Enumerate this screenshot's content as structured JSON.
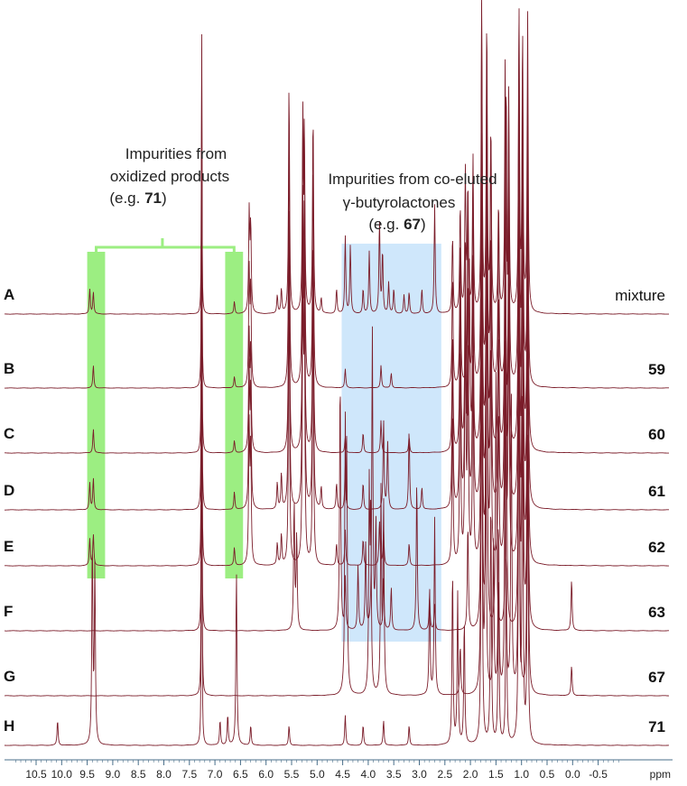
{
  "chart_data": {
    "type": "line",
    "title": "",
    "xlabel": "ppm",
    "x_axis": {
      "range": [
        10.9,
        -0.95
      ],
      "reversed": true,
      "ticks": [
        10.5,
        10.0,
        9.5,
        9.0,
        8.5,
        8.0,
        7.5,
        7.0,
        6.5,
        6.0,
        5.5,
        5.0,
        4.5,
        4.0,
        3.5,
        3.0,
        2.5,
        2.0,
        1.5,
        1.0,
        0.5,
        0.0,
        -0.5
      ],
      "tick_labels": [
        "10.5",
        "10.0",
        "9.5",
        "9.0",
        "8.5",
        "8.0",
        "7.5",
        "7.0",
        "6.5",
        "6.0",
        "5.5",
        "5.0",
        "4.5",
        "4.0",
        "3.5",
        "3.0",
        "2.5",
        "2.0",
        "1.5",
        "1.0",
        "0.5",
        "0.0",
        "-0.5"
      ],
      "unit_label": "ppm"
    },
    "grid": false,
    "line_color": "#7b1d2a",
    "series": [
      {
        "row": "A",
        "label": "mixture",
        "peaks": [
          [
            9.45,
            0.08
          ],
          [
            9.38,
            0.07
          ],
          [
            7.26,
            1.0
          ],
          [
            6.62,
            0.04
          ],
          [
            6.33,
            0.32
          ],
          [
            6.3,
            0.28
          ],
          [
            5.78,
            0.06
          ],
          [
            5.7,
            0.08
          ],
          [
            5.55,
            0.75
          ],
          [
            5.28,
            0.6
          ],
          [
            5.25,
            0.55
          ],
          [
            5.08,
            0.65
          ],
          [
            4.92,
            0.05
          ],
          [
            4.62,
            0.08
          ],
          [
            4.45,
            0.25
          ],
          [
            4.35,
            0.22
          ],
          [
            4.1,
            0.08
          ],
          [
            3.98,
            0.2
          ],
          [
            3.78,
            0.3
          ],
          [
            3.72,
            0.2
          ],
          [
            3.6,
            0.1
          ],
          [
            3.5,
            0.08
          ],
          [
            3.3,
            0.06
          ],
          [
            3.2,
            0.07
          ],
          [
            2.95,
            0.08
          ],
          [
            2.7,
            0.35
          ],
          [
            2.35,
            0.25
          ],
          [
            2.2,
            0.35
          ],
          [
            2.1,
            0.45
          ],
          [
            2.05,
            0.4
          ],
          [
            1.95,
            0.5
          ],
          [
            1.78,
            1.0
          ],
          [
            1.68,
            0.95
          ],
          [
            1.6,
            0.6
          ],
          [
            1.45,
            0.35
          ],
          [
            1.32,
            0.8
          ],
          [
            1.25,
            0.7
          ],
          [
            1.05,
            0.95
          ],
          [
            0.98,
            0.9
          ],
          [
            0.88,
            0.95
          ]
        ]
      },
      {
        "row": "B",
        "label": "59",
        "peaks": [
          [
            9.38,
            0.06
          ],
          [
            7.26,
            1.0
          ],
          [
            6.62,
            0.03
          ],
          [
            6.33,
            0.3
          ],
          [
            6.3,
            0.26
          ],
          [
            5.55,
            0.7
          ],
          [
            5.28,
            0.65
          ],
          [
            5.25,
            0.6
          ],
          [
            5.08,
            0.62
          ],
          [
            4.45,
            0.05
          ],
          [
            3.75,
            0.06
          ],
          [
            3.55,
            0.04
          ],
          [
            2.35,
            0.3
          ],
          [
            2.2,
            0.4
          ],
          [
            2.05,
            0.5
          ],
          [
            1.95,
            0.55
          ],
          [
            1.78,
            1.0
          ],
          [
            1.68,
            0.9
          ],
          [
            1.6,
            0.7
          ],
          [
            1.45,
            0.5
          ],
          [
            1.3,
            0.8
          ],
          [
            1.25,
            0.7
          ],
          [
            1.05,
            1.0
          ],
          [
            0.98,
            0.9
          ],
          [
            0.88,
            0.7
          ]
        ]
      },
      {
        "row": "C",
        "label": "60",
        "peaks": [
          [
            9.38,
            0.06
          ],
          [
            7.26,
            1.0
          ],
          [
            6.62,
            0.03
          ],
          [
            6.33,
            0.28
          ],
          [
            6.3,
            0.25
          ],
          [
            5.55,
            0.62
          ],
          [
            5.28,
            0.58
          ],
          [
            5.25,
            0.55
          ],
          [
            5.08,
            0.55
          ],
          [
            4.45,
            0.04
          ],
          [
            4.1,
            0.05
          ],
          [
            3.75,
            0.08
          ],
          [
            3.2,
            0.04
          ],
          [
            2.35,
            0.3
          ],
          [
            2.2,
            0.45
          ],
          [
            2.1,
            0.5
          ],
          [
            2.02,
            0.45
          ],
          [
            1.95,
            0.4
          ],
          [
            1.78,
            1.0
          ],
          [
            1.68,
            0.95
          ],
          [
            1.6,
            0.55
          ],
          [
            1.45,
            0.4
          ],
          [
            1.32,
            0.8
          ],
          [
            1.25,
            0.7
          ],
          [
            1.05,
            1.0
          ],
          [
            0.98,
            0.9
          ],
          [
            0.88,
            0.85
          ]
        ]
      },
      {
        "row": "D",
        "label": "61",
        "peaks": [
          [
            9.45,
            0.06
          ],
          [
            9.38,
            0.07
          ],
          [
            7.26,
            1.0
          ],
          [
            6.62,
            0.04
          ],
          [
            6.33,
            0.3
          ],
          [
            6.3,
            0.26
          ],
          [
            5.78,
            0.06
          ],
          [
            5.7,
            0.08
          ],
          [
            5.55,
            0.7
          ],
          [
            5.28,
            0.6
          ],
          [
            5.25,
            0.55
          ],
          [
            5.08,
            0.58
          ],
          [
            4.92,
            0.05
          ],
          [
            4.62,
            0.06
          ],
          [
            4.45,
            0.1
          ],
          [
            4.1,
            0.06
          ],
          [
            3.7,
            0.2
          ],
          [
            3.62,
            0.15
          ],
          [
            3.2,
            0.18
          ],
          [
            2.95,
            0.05
          ],
          [
            2.35,
            0.35
          ],
          [
            2.2,
            0.5
          ],
          [
            2.1,
            0.55
          ],
          [
            2.05,
            0.5
          ],
          [
            1.95,
            0.55
          ],
          [
            1.78,
            1.0
          ],
          [
            1.68,
            0.9
          ],
          [
            1.6,
            0.6
          ],
          [
            1.45,
            0.4
          ],
          [
            1.32,
            0.75
          ],
          [
            1.25,
            0.7
          ],
          [
            1.05,
            0.95
          ],
          [
            0.98,
            0.9
          ],
          [
            0.88,
            0.85
          ]
        ]
      },
      {
        "row": "E",
        "label": "62",
        "peaks": [
          [
            9.45,
            0.06
          ],
          [
            9.38,
            0.07
          ],
          [
            7.26,
            1.0
          ],
          [
            6.62,
            0.04
          ],
          [
            6.33,
            0.3
          ],
          [
            6.3,
            0.26
          ],
          [
            5.78,
            0.05
          ],
          [
            5.7,
            0.07
          ],
          [
            5.55,
            0.65
          ],
          [
            5.28,
            0.6
          ],
          [
            5.25,
            0.55
          ],
          [
            5.08,
            0.6
          ],
          [
            4.62,
            0.05
          ],
          [
            4.45,
            0.08
          ],
          [
            4.1,
            0.06
          ],
          [
            3.78,
            0.1
          ],
          [
            3.7,
            0.08
          ],
          [
            3.2,
            0.05
          ],
          [
            2.35,
            0.35
          ],
          [
            2.2,
            0.5
          ],
          [
            2.1,
            0.55
          ],
          [
            2.05,
            0.5
          ],
          [
            1.95,
            0.45
          ],
          [
            1.78,
            1.0
          ],
          [
            1.68,
            0.9
          ],
          [
            1.6,
            0.5
          ],
          [
            1.45,
            0.35
          ],
          [
            1.32,
            0.7
          ],
          [
            1.25,
            0.6
          ],
          [
            1.05,
            0.9
          ],
          [
            0.98,
            0.85
          ],
          [
            0.88,
            0.8
          ]
        ]
      },
      {
        "row": "F",
        "label": "63",
        "peaks": [
          [
            7.26,
            1.0
          ],
          [
            5.45,
            0.3
          ],
          [
            5.4,
            0.22
          ],
          [
            4.55,
            0.6
          ],
          [
            4.45,
            0.12
          ],
          [
            4.2,
            0.15
          ],
          [
            4.05,
            0.2
          ],
          [
            3.92,
            0.7
          ],
          [
            3.85,
            0.25
          ],
          [
            3.7,
            0.12
          ],
          [
            3.55,
            0.1
          ],
          [
            3.05,
            0.35
          ],
          [
            2.8,
            0.08
          ],
          [
            2.7,
            0.06
          ],
          [
            2.05,
            0.25
          ],
          [
            1.78,
            1.0
          ],
          [
            1.68,
            0.9
          ],
          [
            1.5,
            0.6
          ],
          [
            1.3,
            0.75
          ],
          [
            1.05,
            0.95
          ],
          [
            0.98,
            0.9
          ],
          [
            0.88,
            0.85
          ],
          [
            0.02,
            0.12
          ]
        ]
      },
      {
        "row": "G",
        "label": "67",
        "peaks": [
          [
            7.26,
            1.0
          ],
          [
            4.45,
            0.5
          ],
          [
            4.42,
            0.45
          ],
          [
            3.98,
            0.4
          ],
          [
            3.95,
            0.35
          ],
          [
            3.75,
            0.4
          ],
          [
            3.7,
            0.38
          ],
          [
            2.8,
            0.22
          ],
          [
            2.7,
            0.35
          ],
          [
            2.2,
            0.1
          ],
          [
            1.78,
            1.0
          ],
          [
            1.7,
            0.6
          ],
          [
            1.55,
            0.3
          ],
          [
            1.45,
            0.35
          ],
          [
            1.32,
            0.7
          ],
          [
            1.2,
            0.6
          ],
          [
            1.05,
            0.9
          ],
          [
            0.88,
            0.85
          ],
          [
            0.02,
            0.06
          ]
        ]
      },
      {
        "row": "H",
        "label": "71",
        "peaks": [
          [
            10.08,
            0.05
          ],
          [
            9.4,
            0.4
          ],
          [
            9.35,
            0.35
          ],
          [
            7.26,
            1.0
          ],
          [
            6.9,
            0.05
          ],
          [
            6.75,
            0.06
          ],
          [
            6.58,
            0.35
          ],
          [
            6.3,
            0.04
          ],
          [
            5.55,
            0.04
          ],
          [
            4.45,
            0.06
          ],
          [
            4.1,
            0.04
          ],
          [
            3.7,
            0.05
          ],
          [
            3.2,
            0.04
          ],
          [
            2.35,
            0.35
          ],
          [
            2.25,
            0.3
          ],
          [
            2.12,
            0.25
          ],
          [
            1.78,
            0.9
          ],
          [
            1.6,
            0.5
          ],
          [
            1.45,
            0.35
          ],
          [
            1.3,
            0.4
          ],
          [
            1.05,
            0.8
          ],
          [
            0.98,
            0.7
          ],
          [
            0.88,
            0.6
          ]
        ]
      }
    ],
    "annotations": [
      {
        "id": "oxidized",
        "lines": [
          "Impurities from",
          "oxidized products",
          "(e.g. 71)"
        ],
        "bold_token": "71",
        "highlight_color": "#9cee82",
        "regions_ppm": [
          [
            9.5,
            9.15
          ],
          [
            6.8,
            6.45
          ]
        ]
      },
      {
        "id": "butyrolactones",
        "lines": [
          "Impurities from co-eluted",
          "γ-butyrolactones",
          "(e.g. 67)"
        ],
        "bold_token": "67",
        "highlight_color": "#cfe7fb",
        "regions_ppm": [
          [
            4.52,
            2.57
          ]
        ]
      }
    ]
  }
}
